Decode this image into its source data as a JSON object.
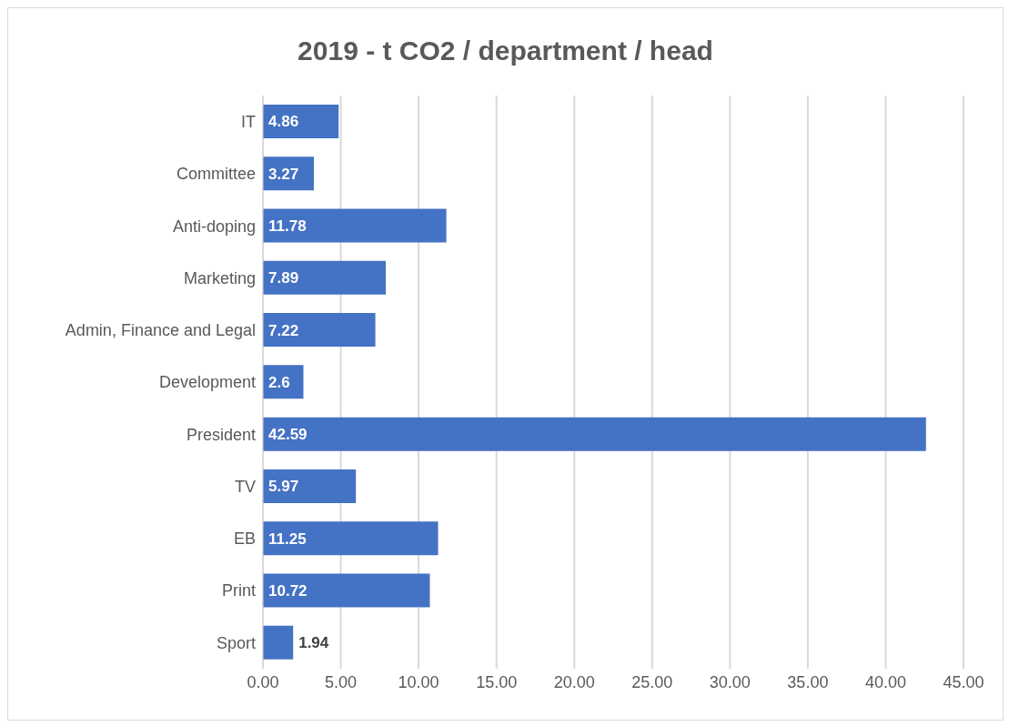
{
  "chart_data": {
    "type": "bar",
    "orientation": "horizontal",
    "title": "2019 - t CO2 / department / head",
    "categories": [
      "IT",
      "Committee",
      "Anti-doping",
      "Marketing",
      "Admin, Finance and Legal",
      "Development",
      "President",
      "TV",
      "EB",
      "Print",
      "Sport"
    ],
    "values": [
      4.86,
      3.27,
      11.78,
      7.89,
      7.22,
      2.6,
      42.59,
      5.97,
      11.25,
      10.72,
      1.94
    ],
    "data_labels": true,
    "color": "#4472c4",
    "xlim": [
      0,
      45
    ],
    "xticks": [
      {
        "value": 0,
        "label": "0.00"
      },
      {
        "value": 5,
        "label": "5.00"
      },
      {
        "value": 10,
        "label": "10.00"
      },
      {
        "value": 15,
        "label": "15.00"
      },
      {
        "value": 20,
        "label": "20.00"
      },
      {
        "value": 25,
        "label": "25.00"
      },
      {
        "value": 30,
        "label": "30.00"
      },
      {
        "value": 35,
        "label": "35.00"
      },
      {
        "value": 40,
        "label": "40.00"
      },
      {
        "value": 45,
        "label": "45.00"
      }
    ],
    "grid": "x",
    "legend": false
  }
}
